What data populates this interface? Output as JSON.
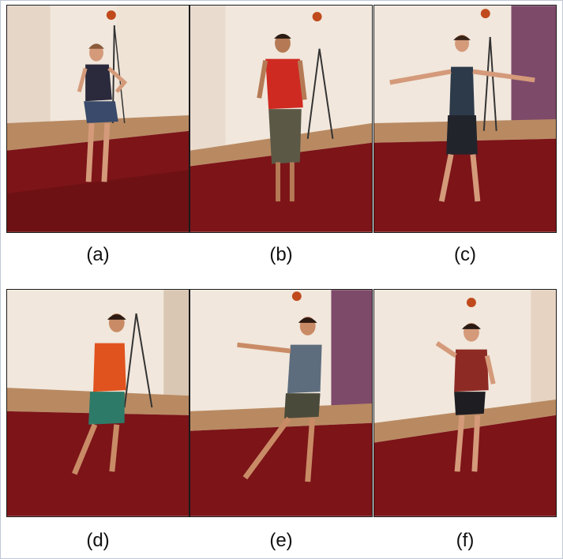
{
  "figure": {
    "panels": [
      {
        "id": "a",
        "caption": "(a)"
      },
      {
        "id": "b",
        "caption": "(b)"
      },
      {
        "id": "c",
        "caption": "(c)"
      },
      {
        "id": "d",
        "caption": "(d)"
      },
      {
        "id": "e",
        "caption": "(e)"
      },
      {
        "id": "f",
        "caption": "(f)"
      }
    ],
    "colors": {
      "wall": "#f1e7dc",
      "wall_shadow": "#dccdbf",
      "floor": "#7c1418",
      "floor_dark": "#5e0d10",
      "baseboard": "#c9a07a",
      "skin": "#d49a7a",
      "hair": "#3a2418"
    }
  }
}
